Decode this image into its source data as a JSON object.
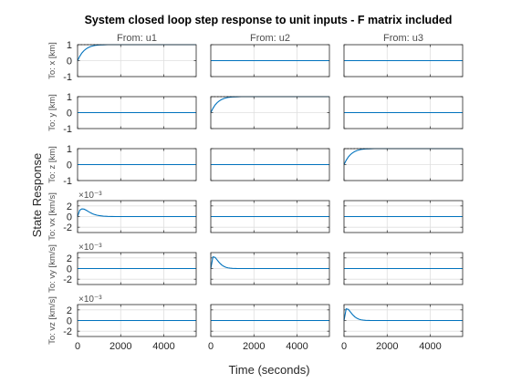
{
  "chart_data": {
    "type": "line",
    "title": "System closed loop step response to unit inputs - F matrix included",
    "xlabel": "Time (seconds)",
    "ylabel": "State Response",
    "columns": [
      "From: u1",
      "From: u2",
      "From: u3"
    ],
    "rows": [
      {
        "label": "To: x [km]",
        "ylim": [
          -1,
          1
        ],
        "yticks": [
          "1",
          "0",
          "-1"
        ],
        "exponent": ""
      },
      {
        "label": "To: y [km]",
        "ylim": [
          -1,
          1
        ],
        "yticks": [
          "1",
          "0",
          "-1"
        ],
        "exponent": ""
      },
      {
        "label": "To: z [km]",
        "ylim": [
          -1,
          1
        ],
        "yticks": [
          "1",
          "0",
          "-1"
        ],
        "exponent": ""
      },
      {
        "label": "To: vx [km/s]",
        "ylim": [
          -0.003,
          0.003
        ],
        "yticks": [
          "2",
          "0",
          "-2"
        ],
        "exponent": "×10⁻³"
      },
      {
        "label": "To: vy [km/s]",
        "ylim": [
          -0.003,
          0.003
        ],
        "yticks": [
          "2",
          "0",
          "-2"
        ],
        "exponent": "×10⁻³"
      },
      {
        "label": "To: vz [km/s]",
        "ylim": [
          -0.003,
          0.003
        ],
        "yticks": [
          "2",
          "0",
          "-2"
        ],
        "exponent": "×10⁻³"
      }
    ],
    "xlim": [
      0,
      5500
    ],
    "xticks": [
      0,
      2000,
      4000
    ],
    "xticklabels": [
      "0",
      "2000",
      "4000"
    ],
    "grid": true,
    "line_color": "#0072bd",
    "steady_state_color": "#000000",
    "time": [
      0,
      100,
      200,
      300,
      400,
      500,
      600,
      700,
      800,
      900,
      1000,
      1200,
      1400,
      1600,
      1800,
      2000,
      2500,
      3000,
      3500,
      4000,
      4500,
      5000,
      5500
    ],
    "responses": {
      "position": [
        0,
        0.27,
        0.48,
        0.63,
        0.74,
        0.82,
        0.88,
        0.92,
        0.95,
        0.97,
        0.98,
        0.99,
        1.0,
        1.0,
        1.0,
        1.0,
        1.0,
        1.0,
        1.0,
        1.0,
        1.0,
        1.0,
        1.0
      ],
      "velocity_u1": [
        0,
        0.0012,
        0.00145,
        0.0014,
        0.0012,
        0.00095,
        0.00072,
        0.00052,
        0.00037,
        0.00026,
        0.00018,
        8e-05,
        3e-05,
        1e-05,
        0,
        0,
        0,
        0,
        0,
        0,
        0,
        0,
        0
      ],
      "velocity_u2u3": [
        0,
        0.0022,
        0.0021,
        0.0016,
        0.0011,
        0.0007,
        0.00042,
        0.00024,
        0.00013,
        7e-05,
        4e-05,
        1e-05,
        0,
        0,
        0,
        0,
        0,
        0,
        0,
        0,
        0,
        0,
        0
      ],
      "zero": [
        0,
        0,
        0,
        0,
        0,
        0,
        0,
        0,
        0,
        0,
        0,
        0,
        0,
        0,
        0,
        0,
        0,
        0,
        0,
        0,
        0,
        0,
        0
      ]
    },
    "active": [
      [
        "position",
        "zero",
        "zero"
      ],
      [
        "zero",
        "position",
        "zero"
      ],
      [
        "zero",
        "zero",
        "position"
      ],
      [
        "velocity_u1",
        "zero",
        "zero"
      ],
      [
        "zero",
        "velocity_u2u3",
        "zero"
      ],
      [
        "zero",
        "zero",
        "velocity_u2u3"
      ]
    ],
    "steady_state": [
      [
        1,
        null,
        null
      ],
      [
        null,
        1,
        null
      ],
      [
        null,
        null,
        1
      ],
      [
        null,
        null,
        null
      ],
      [
        null,
        null,
        null
      ],
      [
        null,
        null,
        null
      ]
    ]
  }
}
